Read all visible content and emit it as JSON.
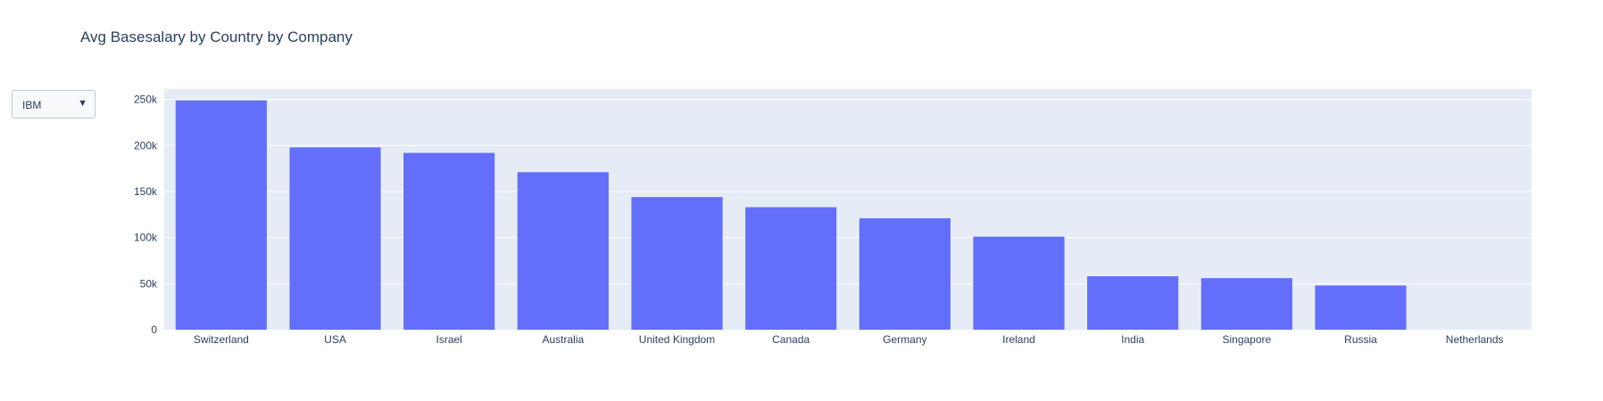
{
  "title": "Avg Basesalary by Country by Company",
  "dropdown": {
    "selected": "IBM",
    "caret": "▼"
  },
  "colors": {
    "bar": "#636efa",
    "plot_bg": "#e5ecf6",
    "grid": "#ffffff",
    "text": "#2a3f5f"
  },
  "chart_data": {
    "type": "bar",
    "title": "Avg Basesalary by Country by Company",
    "categories": [
      "Switzerland",
      "USA",
      "Israel",
      "Australia",
      "United Kingdom",
      "Canada",
      "Germany",
      "Ireland",
      "India",
      "Singapore",
      "Russia",
      "Netherlands"
    ],
    "values": [
      249000,
      198000,
      192000,
      171000,
      144000,
      133000,
      121000,
      101000,
      58000,
      56000,
      48000,
      0
    ],
    "ylim": [
      0,
      250000
    ],
    "yticks": [
      0,
      50000,
      100000,
      150000,
      200000,
      250000
    ],
    "ytick_labels": [
      "0",
      "50k",
      "100k",
      "150k",
      "200k",
      "250k"
    ],
    "xlabel": "",
    "ylabel": "",
    "grid": true
  }
}
